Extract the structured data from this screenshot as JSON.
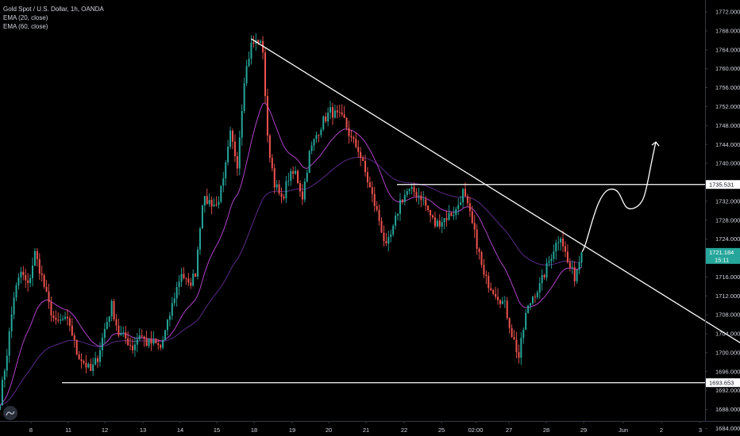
{
  "legend": {
    "symbol": "Gold Spot / U.S. Dollar, 1h, OANDA",
    "ema20": "EMA (20, close)",
    "ema60": "EMA (60, close)"
  },
  "logo_icon": "tradingview-logo-icon",
  "colors": {
    "background": "#000000",
    "candle_up": "#26a69a",
    "candle_down": "#ef5350",
    "ema20": "#b042c9",
    "ema60": "#5b2a86",
    "drawing": "#ffffff",
    "current_price_badge": "#26a69a"
  },
  "chart_data": {
    "type": "candlestick",
    "y_axis": {
      "range": [
        1681,
        1775
      ],
      "ticks": [
        "1772.000",
        "1768.000",
        "1764.000",
        "1760.000",
        "1756.000",
        "1752.000",
        "1748.000",
        "1744.000",
        "1740.000",
        "1736.000",
        "1732.000",
        "1728.000",
        "1724.000",
        "1720.000",
        "1716.000",
        "1712.000",
        "1708.000",
        "1704.000",
        "1700.000",
        "1696.000",
        "1692.000",
        "1688.000",
        "1684.000"
      ]
    },
    "x_axis": {
      "ticks": [
        "8",
        "11",
        "12",
        "13",
        "14",
        "15",
        "18",
        "19",
        "20",
        "21",
        "22",
        "25",
        "02:00",
        "27",
        "28",
        "29",
        "Jun",
        "2",
        "3"
      ]
    },
    "anchors": [
      [
        0,
        1690
      ],
      [
        3,
        1700
      ],
      [
        6,
        1712
      ],
      [
        9,
        1717
      ],
      [
        12,
        1714
      ],
      [
        15,
        1721
      ],
      [
        18,
        1716
      ],
      [
        21,
        1710
      ],
      [
        24,
        1706
      ],
      [
        27,
        1707
      ],
      [
        30,
        1706
      ],
      [
        33,
        1700
      ],
      [
        36,
        1698
      ],
      [
        39,
        1696
      ],
      [
        42,
        1699
      ],
      [
        45,
        1705
      ],
      [
        48,
        1710
      ],
      [
        51,
        1704
      ],
      [
        54,
        1703
      ],
      [
        57,
        1701
      ],
      [
        60,
        1704
      ],
      [
        63,
        1702
      ],
      [
        66,
        1702
      ],
      [
        69,
        1701
      ],
      [
        72,
        1706
      ],
      [
        75,
        1712
      ],
      [
        78,
        1717
      ],
      [
        81,
        1714
      ],
      [
        84,
        1717
      ],
      [
        87,
        1732
      ],
      [
        90,
        1732
      ],
      [
        93,
        1731
      ],
      [
        96,
        1736
      ],
      [
        99,
        1746
      ],
      [
        102,
        1740
      ],
      [
        105,
        1758
      ],
      [
        108,
        1765
      ],
      [
        111,
        1766
      ],
      [
        113,
        1764
      ],
      [
        115,
        1745
      ],
      [
        118,
        1736
      ],
      [
        121,
        1732
      ],
      [
        124,
        1737
      ],
      [
        127,
        1738
      ],
      [
        130,
        1733
      ],
      [
        133,
        1742
      ],
      [
        136,
        1746
      ],
      [
        139,
        1749
      ],
      [
        142,
        1751
      ],
      [
        145,
        1750
      ],
      [
        148,
        1749
      ],
      [
        151,
        1745
      ],
      [
        154,
        1743
      ],
      [
        157,
        1738
      ],
      [
        160,
        1733
      ],
      [
        163,
        1728
      ],
      [
        166,
        1722
      ],
      [
        169,
        1726
      ],
      [
        172,
        1732
      ],
      [
        175,
        1734
      ],
      [
        178,
        1734
      ],
      [
        181,
        1733
      ],
      [
        184,
        1730
      ],
      [
        187,
        1727
      ],
      [
        190,
        1728
      ],
      [
        193,
        1729
      ],
      [
        196,
        1730
      ],
      [
        199,
        1734
      ],
      [
        202,
        1729
      ],
      [
        205,
        1723
      ],
      [
        208,
        1716
      ],
      [
        211,
        1714
      ],
      [
        214,
        1712
      ],
      [
        217,
        1710
      ],
      [
        220,
        1704
      ],
      [
        223,
        1699
      ],
      [
        226,
        1708
      ],
      [
        229,
        1712
      ],
      [
        232,
        1714
      ],
      [
        235,
        1718
      ],
      [
        238,
        1722
      ],
      [
        241,
        1725
      ],
      [
        244,
        1719
      ],
      [
        247,
        1716
      ],
      [
        250,
        1721.184
      ]
    ],
    "ema20_label": "EMA (20, close)",
    "ema60_label": "EMA (60, close)",
    "current_price": "1721.184",
    "current_price_time": "15:11",
    "horizontal_levels": [
      {
        "price": 1735.531,
        "label": "1735.531"
      },
      {
        "price": 1693.653,
        "label": "1693.653"
      }
    ],
    "trendline": {
      "from": {
        "bar": 108,
        "price": 1766.3
      },
      "to": {
        "bar": 325,
        "price": 1700.0
      }
    },
    "projection_path_prices": [
      1721.3,
      1728,
      1734.5,
      1731,
      1730.5,
      1734,
      1744.5
    ]
  }
}
